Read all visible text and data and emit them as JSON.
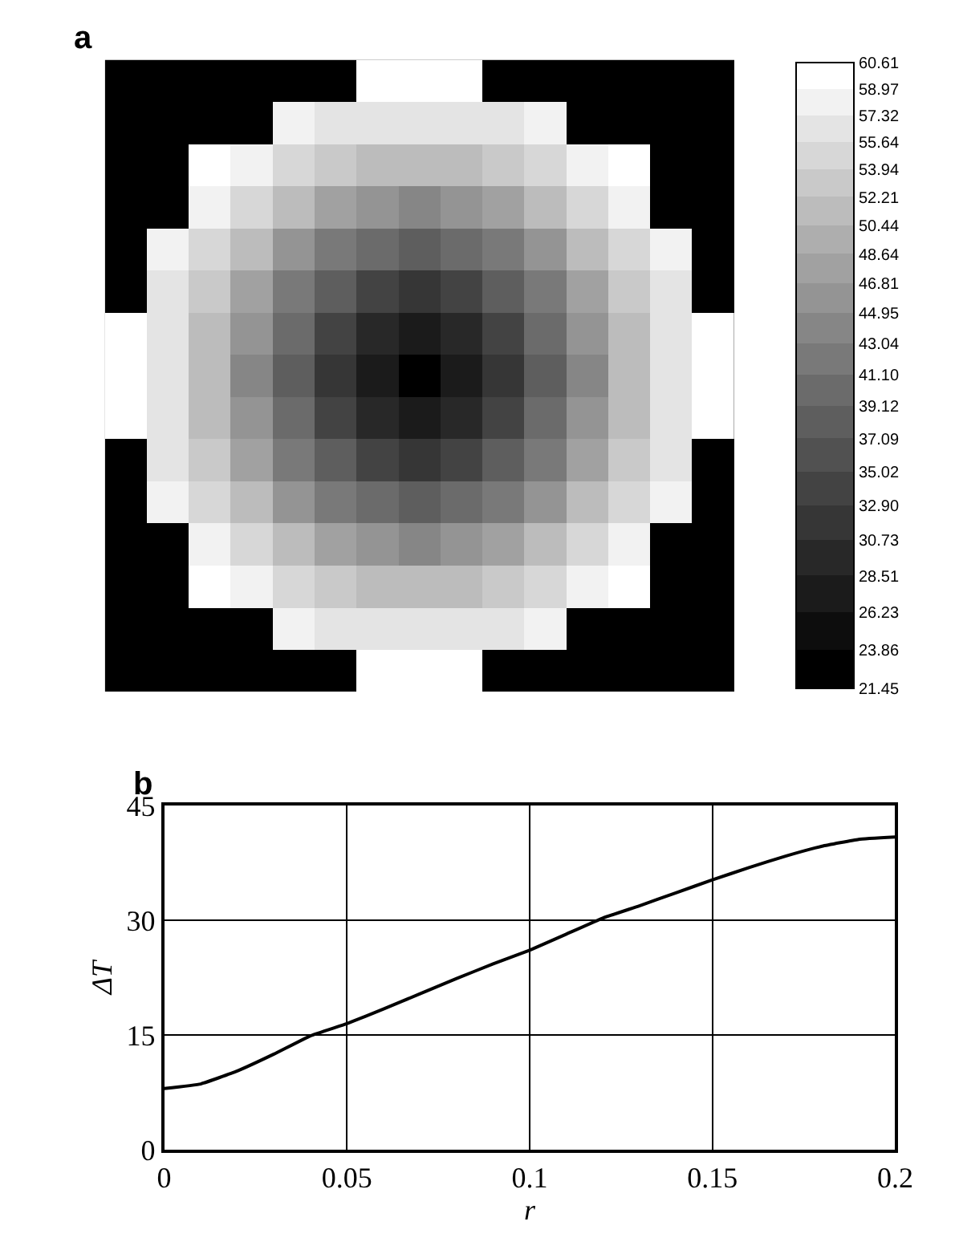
{
  "chart_data": [
    {
      "type": "heatmap",
      "title": "a",
      "categories": [
        null,
        null,
        null,
        null,
        null,
        null,
        null,
        null,
        null,
        null,
        null,
        null,
        null,
        null,
        null
      ],
      "y_categories": [
        null,
        null,
        null,
        null,
        null,
        null,
        null,
        null,
        null,
        null,
        null,
        null,
        null,
        null,
        null
      ],
      "cells": [
        [
          null,
          null,
          null,
          null,
          null,
          null,
          60.1,
          59.8,
          60.1,
          null,
          null,
          null,
          null,
          null,
          null
        ],
        [
          null,
          null,
          null,
          null,
          58.7,
          57.2,
          56.2,
          55.9,
          56.2,
          57.2,
          58.7,
          null,
          null,
          null,
          null
        ],
        [
          null,
          null,
          60.1,
          57.5,
          55.2,
          53.5,
          51.6,
          51.0,
          51.6,
          53.5,
          55.2,
          57.5,
          60.1,
          null,
          null
        ],
        [
          null,
          null,
          57.5,
          54.6,
          51.0,
          47.7,
          45.5,
          44.7,
          45.5,
          47.7,
          51.0,
          54.6,
          57.5,
          null,
          null
        ],
        [
          null,
          58.7,
          55.2,
          51.0,
          46.2,
          42.3,
          39.4,
          38.4,
          39.4,
          42.3,
          46.2,
          51.0,
          55.2,
          58.7,
          null
        ],
        [
          null,
          57.2,
          53.5,
          47.7,
          42.3,
          37.3,
          33.6,
          32.1,
          33.6,
          37.3,
          42.3,
          47.7,
          53.5,
          57.2,
          null
        ],
        [
          60.1,
          56.2,
          51.6,
          45.5,
          39.4,
          33.6,
          28.8,
          26.7,
          28.8,
          33.6,
          39.4,
          45.5,
          51.6,
          56.2,
          60.1
        ],
        [
          59.8,
          55.9,
          51.0,
          44.7,
          38.4,
          32.1,
          26.7,
          21.5,
          26.7,
          32.1,
          38.4,
          44.7,
          51.0,
          55.9,
          59.8
        ],
        [
          60.1,
          56.2,
          51.6,
          45.5,
          39.4,
          33.6,
          28.8,
          26.7,
          28.8,
          33.6,
          39.4,
          45.5,
          51.6,
          56.2,
          60.1
        ],
        [
          null,
          57.2,
          53.5,
          47.7,
          42.3,
          37.3,
          33.6,
          32.1,
          33.6,
          37.3,
          42.3,
          47.7,
          53.5,
          57.2,
          null
        ],
        [
          null,
          58.7,
          55.2,
          51.0,
          46.2,
          42.3,
          39.4,
          38.4,
          39.4,
          42.3,
          46.2,
          51.0,
          55.2,
          58.7,
          null
        ],
        [
          null,
          null,
          57.5,
          54.6,
          51.0,
          47.7,
          45.5,
          44.7,
          45.5,
          47.7,
          51.0,
          54.6,
          57.5,
          null,
          null
        ],
        [
          null,
          null,
          60.1,
          57.5,
          55.2,
          53.5,
          51.6,
          51.0,
          51.6,
          53.5,
          55.2,
          57.5,
          60.1,
          null,
          null
        ],
        [
          null,
          null,
          null,
          null,
          58.7,
          57.2,
          56.2,
          55.9,
          56.2,
          57.2,
          58.7,
          null,
          null,
          null,
          null
        ],
        [
          null,
          null,
          null,
          null,
          null,
          null,
          60.1,
          59.8,
          60.1,
          null,
          null,
          null,
          null,
          null,
          null
        ]
      ],
      "clim": [
        21.45,
        60.61
      ],
      "cticks": [
        21.45,
        23.86,
        26.23,
        28.51,
        30.73,
        {
          "value": 32.9,
          "label": "32.90"
        },
        35.02,
        37.09,
        39.12,
        {
          "value": 41.1,
          "label": "41.10"
        },
        43.04,
        44.95,
        46.81,
        48.64,
        50.44,
        52.21,
        53.94,
        55.64,
        57.32,
        58.97,
        60.61
      ]
    },
    {
      "type": "line",
      "title": "b",
      "xlabel": "r",
      "ylabel": "ΔT",
      "x": [
        0,
        0.01,
        0.02,
        0.03,
        0.04,
        0.05,
        0.06,
        0.07,
        0.08,
        0.09,
        0.1,
        0.11,
        0.12,
        0.13,
        0.14,
        0.15,
        0.16,
        0.17,
        0.18,
        0.19,
        0.2
      ],
      "series": [
        {
          "color": "#000000",
          "values": [
            8.0,
            8.6,
            10.3,
            12.5,
            14.9,
            16.5,
            18.4,
            20.4,
            22.4,
            24.3,
            26.1,
            28.2,
            30.3,
            31.9,
            33.6,
            35.3,
            36.9,
            38.4,
            39.7,
            40.6,
            40.9
          ]
        }
      ],
      "xlim": [
        0,
        0.2
      ],
      "xticks": [
        0,
        0.05,
        0.1,
        0.15,
        0.2
      ],
      "ylim": [
        0,
        45
      ],
      "yticks": [
        0,
        15,
        30,
        45
      ],
      "grid": true,
      "marker": "none",
      "line_style": "solid"
    }
  ]
}
